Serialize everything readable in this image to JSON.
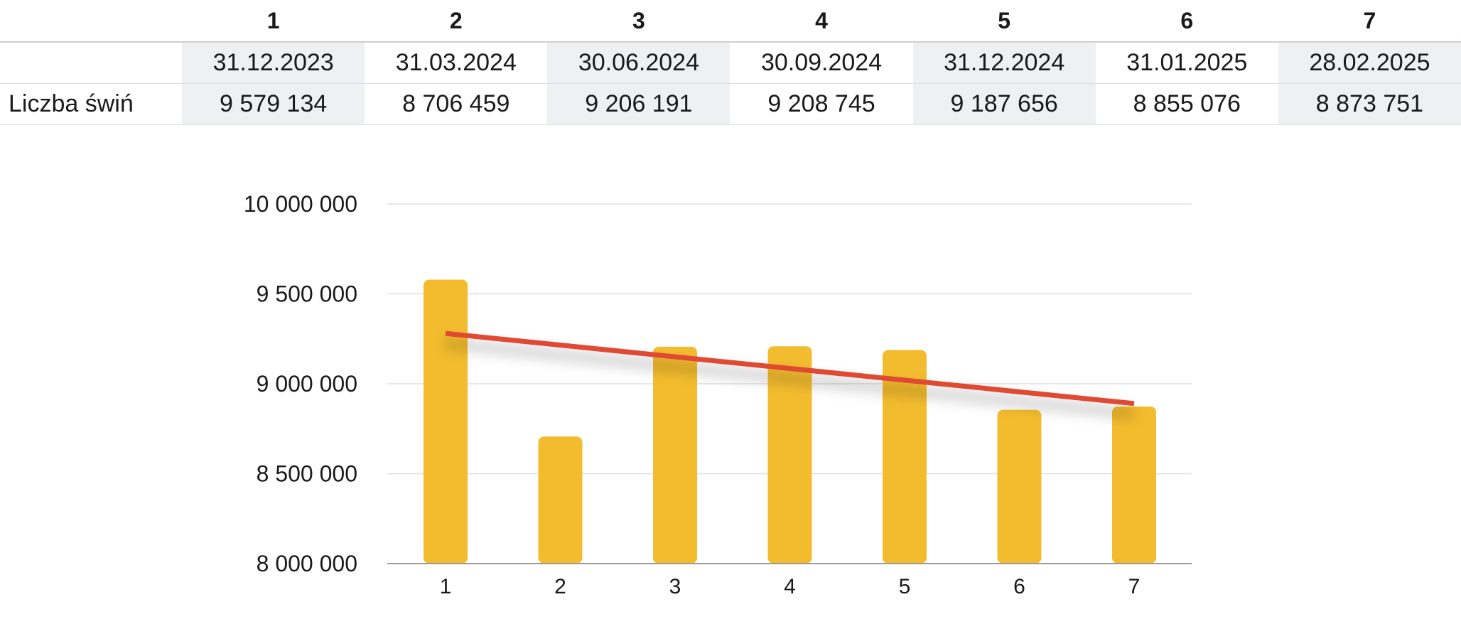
{
  "table": {
    "headers": [
      "",
      "1",
      "2",
      "3",
      "4",
      "5",
      "6",
      "7"
    ],
    "rows": [
      [
        "",
        "31.12.2023",
        "31.03.2024",
        "30.06.2024",
        "30.09.2024",
        "31.12.2024",
        "31.01.2025",
        "28.02.2025"
      ],
      [
        "Liczba świń",
        "9 579 134",
        "8 706 459",
        "9 206 191",
        "9 208 745",
        "9 187 656",
        "8 855 076",
        "8 873 751"
      ]
    ]
  },
  "chart_data": {
    "type": "bar",
    "categories": [
      "1",
      "2",
      "3",
      "4",
      "5",
      "6",
      "7"
    ],
    "series": [
      {
        "values": [
          9579134,
          8706459,
          9206191,
          9208745,
          9187656,
          8855076,
          8873751
        ]
      }
    ],
    "trendline": {
      "type": "linear",
      "start": 9280000,
      "end": 8890000
    },
    "ylim": [
      8000000,
      10000000
    ],
    "yticks": [
      8000000,
      8500000,
      9000000,
      9500000,
      10000000
    ],
    "ytick_labels": [
      "8 000 000",
      "8 500 000",
      "9 000 000",
      "9 500 000",
      "10 000 000"
    ],
    "grid": true,
    "legend": "none",
    "colors": {
      "bar": "#f3bc2e",
      "trendline": "#e04a33",
      "grid": "#e0e0e0",
      "axis": "#999999"
    }
  }
}
